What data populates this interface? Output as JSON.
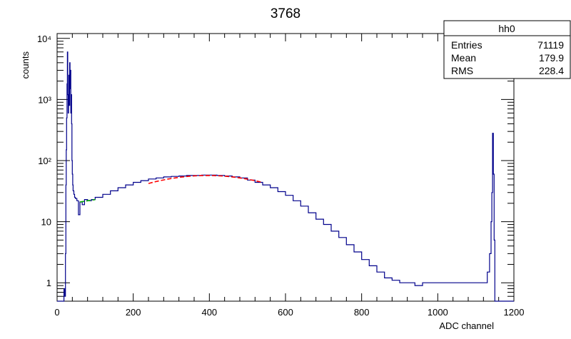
{
  "colors": {
    "histogram": "#00008b",
    "fit_main": "#ff0000",
    "fit_side": "#00aa00",
    "frame": "#000000"
  },
  "stats_box": {
    "name": "hh0",
    "rows": [
      {
        "label": "Entries",
        "value": "71119"
      },
      {
        "label": "Mean",
        "value": "179.9"
      },
      {
        "label": "RMS",
        "value": "228.4"
      }
    ]
  },
  "chart_data": {
    "type": "line",
    "title": "3768",
    "xlabel": "ADC channel",
    "ylabel": "counts",
    "xlim": [
      0,
      1200
    ],
    "ylim": [
      0.5,
      12000
    ],
    "log_y": true,
    "x_ticks": [
      0,
      200,
      400,
      600,
      800,
      1000,
      1200
    ],
    "y_ticks": [
      {
        "value": 1,
        "label": "1"
      },
      {
        "value": 10,
        "label": "10"
      },
      {
        "value": 100,
        "label": "10²"
      },
      {
        "value": 1000,
        "label": "10³"
      },
      {
        "value": 10000,
        "label": "10⁴"
      }
    ],
    "series": [
      {
        "style": "histogram",
        "points": [
          [
            0,
            0.5
          ],
          [
            16,
            0.5
          ],
          [
            18,
            0.8
          ],
          [
            19,
            0.6
          ],
          [
            20,
            0.8
          ],
          [
            21,
            0.6
          ],
          [
            22,
            3
          ],
          [
            23,
            40
          ],
          [
            24,
            150
          ],
          [
            25,
            500
          ],
          [
            26,
            1800
          ],
          [
            27,
            6000
          ],
          [
            28,
            1200
          ],
          [
            29,
            600
          ],
          [
            30,
            900
          ],
          [
            31,
            2500
          ],
          [
            32,
            800
          ],
          [
            33,
            4000
          ],
          [
            34,
            1500
          ],
          [
            35,
            3000
          ],
          [
            36,
            600
          ],
          [
            37,
            1200
          ],
          [
            38,
            400
          ],
          [
            39,
            100
          ],
          [
            40,
            60
          ],
          [
            41,
            40
          ],
          [
            42,
            32
          ],
          [
            44,
            28
          ],
          [
            46,
            25
          ],
          [
            48,
            24
          ],
          [
            52,
            22
          ],
          [
            56,
            13
          ],
          [
            60,
            21
          ],
          [
            66,
            19
          ],
          [
            72,
            23
          ],
          [
            80,
            22
          ],
          [
            90,
            23
          ],
          [
            100,
            25
          ],
          [
            120,
            28
          ],
          [
            140,
            32
          ],
          [
            160,
            36
          ],
          [
            180,
            40
          ],
          [
            200,
            44
          ],
          [
            220,
            47
          ],
          [
            240,
            50
          ],
          [
            260,
            52
          ],
          [
            280,
            54
          ],
          [
            300,
            55
          ],
          [
            320,
            56
          ],
          [
            340,
            57
          ],
          [
            360,
            57
          ],
          [
            380,
            58
          ],
          [
            400,
            58
          ],
          [
            420,
            57
          ],
          [
            440,
            56
          ],
          [
            460,
            54
          ],
          [
            480,
            52
          ],
          [
            500,
            48
          ],
          [
            520,
            44
          ],
          [
            540,
            40
          ],
          [
            560,
            36
          ],
          [
            580,
            31
          ],
          [
            600,
            27
          ],
          [
            620,
            22
          ],
          [
            640,
            18
          ],
          [
            660,
            14
          ],
          [
            680,
            11
          ],
          [
            700,
            9
          ],
          [
            720,
            7
          ],
          [
            740,
            5.5
          ],
          [
            760,
            4.2
          ],
          [
            780,
            3.2
          ],
          [
            800,
            2.4
          ],
          [
            820,
            1.9
          ],
          [
            840,
            1.5
          ],
          [
            860,
            1.2
          ],
          [
            880,
            1.1
          ],
          [
            900,
            1.0
          ],
          [
            920,
            1.0
          ],
          [
            940,
            0.9
          ],
          [
            960,
            1.0
          ],
          [
            980,
            1.0
          ],
          [
            1000,
            1.0
          ],
          [
            1020,
            1.0
          ],
          [
            1040,
            1.0
          ],
          [
            1060,
            1.0
          ],
          [
            1080,
            1.0
          ],
          [
            1100,
            1.0
          ],
          [
            1120,
            1.0
          ],
          [
            1130,
            1.5
          ],
          [
            1136,
            3
          ],
          [
            1140,
            10
          ],
          [
            1142,
            30
          ],
          [
            1144,
            280
          ],
          [
            1146,
            60
          ],
          [
            1148,
            5
          ],
          [
            1150,
            0.5
          ],
          [
            1200,
            0.5
          ]
        ]
      },
      {
        "style": "fit",
        "color_key": "fit_main",
        "x_range": [
          240,
          540
        ],
        "peak_x": 395,
        "peak_y": 57,
        "sigma": 200
      },
      {
        "style": "fit",
        "color_key": "fit_side",
        "x_range": [
          60,
          100
        ],
        "y_values": [
          21,
          23
        ]
      }
    ]
  }
}
